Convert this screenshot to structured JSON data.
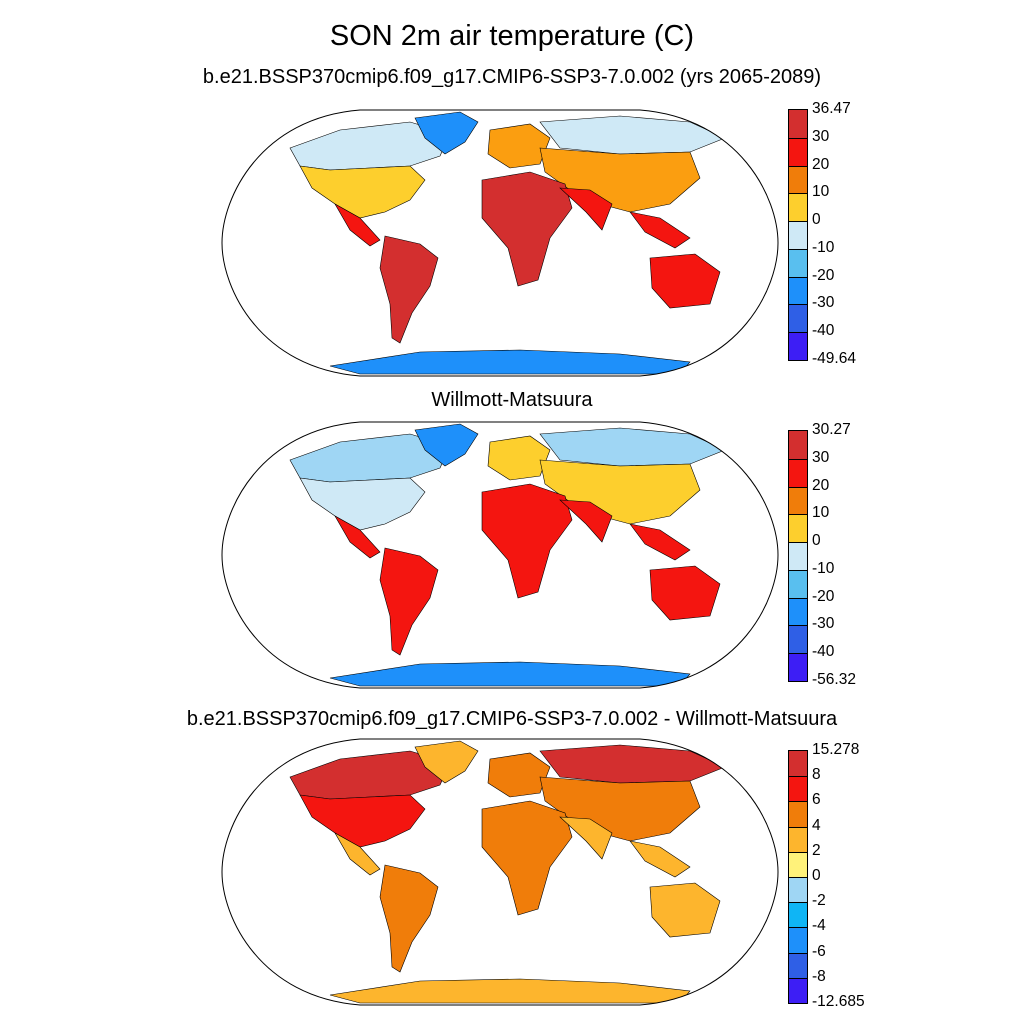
{
  "title": "SON 2m air temperature (C)",
  "panels": [
    {
      "title": "b.e21.BSSP370cmip6.f09_g17.CMIP6-SSP3-7.0.002 (yrs 2065-2089)",
      "colorbar": {
        "labels": [
          "36.47",
          "30",
          "20",
          "10",
          "0",
          "-10",
          "-20",
          "-30",
          "-40",
          "-49.64"
        ],
        "colors": [
          "#d32f2f",
          "#f41510",
          "#f07d0a",
          "#fdcf2d",
          "#cfe9f6",
          "#59bfef",
          "#1e90fa",
          "#2f5fe6",
          "#3d1ef5"
        ]
      },
      "palette": {
        "polar": "#cfe9f6",
        "cold": "#fdcf2d",
        "mid": "#fb9e10",
        "warm": "#f41510",
        "hot": "#d32f2f",
        "ice": "#1e90fa",
        "ice_deep": "#2f5fe6"
      }
    },
    {
      "title": "Willmott-Matsuura",
      "colorbar": {
        "labels": [
          "30.27",
          "30",
          "20",
          "10",
          "0",
          "-10",
          "-20",
          "-30",
          "-40",
          "-56.32"
        ],
        "colors": [
          "#d32f2f",
          "#f41510",
          "#f07d0a",
          "#fdcf2d",
          "#cfe9f6",
          "#59bfef",
          "#1e90fa",
          "#2f5fe6",
          "#3d1ef5"
        ]
      },
      "palette": {
        "polar": "#9fd6f4",
        "cold": "#cfe9f6",
        "mid": "#fdcf2d",
        "warm": "#f41510",
        "hot": "#f41510",
        "ice": "#1e90fa",
        "ice_deep": "#2f5fe6"
      }
    },
    {
      "title": "b.e21.BSSP370cmip6.f09_g17.CMIP6-SSP3-7.0.002 - Willmott-Matsuura",
      "colorbar": {
        "labels": [
          "15.278",
          "8",
          "6",
          "4",
          "2",
          "0",
          "-2",
          "-4",
          "-6",
          "-8",
          "-12.685"
        ],
        "colors": [
          "#d32f2f",
          "#f41510",
          "#f07d0a",
          "#fdb52d",
          "#fff27a",
          "#9fd6f4",
          "#0fb5f5",
          "#1e90fa",
          "#2f5fe6",
          "#3d1ef5"
        ]
      },
      "palette": {
        "polar": "#d32f2f",
        "cold": "#f41510",
        "mid": "#f07d0a",
        "warm": "#fdb52d",
        "hot": "#f07d0a",
        "ice": "#fdb52d",
        "ice_deep": "#f41510"
      }
    }
  ]
}
